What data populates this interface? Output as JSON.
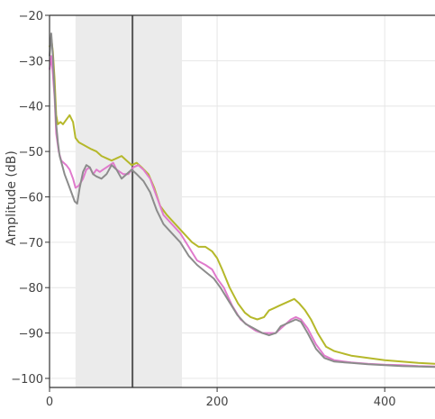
{
  "chart_data": {
    "type": "line",
    "title": "",
    "xlabel": "",
    "ylabel": "Amplitude (dB)",
    "xlim": [
      0,
      460
    ],
    "ylim": [
      -102,
      -20
    ],
    "x_ticks": [
      0,
      200,
      400
    ],
    "y_ticks": [
      -20,
      -30,
      -40,
      -50,
      -60,
      -70,
      -80,
      -90,
      -100
    ],
    "x_tick_labels": [
      "0",
      "200",
      "400"
    ],
    "y_tick_labels": [
      "−20",
      "−30",
      "−40",
      "−50",
      "−60",
      "−70",
      "−80",
      "−90",
      "−100"
    ],
    "grid": true,
    "shaded_region": {
      "x": [
        31,
        158
      ],
      "color": "#ebebeb"
    },
    "vertical_marker": {
      "x": 99,
      "color": "#555555"
    },
    "series": [
      {
        "color": "#b5b82a",
        "points": [
          [
            0,
            -27
          ],
          [
            2,
            -25
          ],
          [
            4,
            -28
          ],
          [
            6,
            -34
          ],
          [
            8,
            -42
          ],
          [
            10,
            -44
          ],
          [
            13,
            -43.5
          ],
          [
            16,
            -44
          ],
          [
            20,
            -43
          ],
          [
            24,
            -42
          ],
          [
            28,
            -43.5
          ],
          [
            31,
            -47
          ],
          [
            35,
            -48
          ],
          [
            40,
            -48.5
          ],
          [
            45,
            -49
          ],
          [
            50,
            -49.5
          ],
          [
            56,
            -50
          ],
          [
            62,
            -51
          ],
          [
            68,
            -51.5
          ],
          [
            74,
            -52
          ],
          [
            80,
            -51.5
          ],
          [
            86,
            -51
          ],
          [
            92,
            -52
          ],
          [
            98,
            -53
          ],
          [
            104,
            -52.5
          ],
          [
            110,
            -53.5
          ],
          [
            118,
            -55
          ],
          [
            125,
            -58
          ],
          [
            132,
            -62
          ],
          [
            140,
            -64
          ],
          [
            150,
            -66
          ],
          [
            160,
            -68
          ],
          [
            170,
            -70
          ],
          [
            178,
            -71
          ],
          [
            186,
            -71
          ],
          [
            194,
            -72
          ],
          [
            200,
            -73.5
          ],
          [
            206,
            -76
          ],
          [
            215,
            -80
          ],
          [
            225,
            -83.5
          ],
          [
            233,
            -85.5
          ],
          [
            240,
            -86.5
          ],
          [
            248,
            -87
          ],
          [
            256,
            -86.5
          ],
          [
            262,
            -85
          ],
          [
            268,
            -84.5
          ],
          [
            274,
            -84
          ],
          [
            280,
            -83.5
          ],
          [
            286,
            -83
          ],
          [
            292,
            -82.5
          ],
          [
            298,
            -83.5
          ],
          [
            305,
            -85
          ],
          [
            312,
            -87
          ],
          [
            320,
            -90
          ],
          [
            330,
            -93
          ],
          [
            340,
            -94
          ],
          [
            350,
            -94.5
          ],
          [
            360,
            -95
          ],
          [
            380,
            -95.5
          ],
          [
            400,
            -96
          ],
          [
            420,
            -96.3
          ],
          [
            440,
            -96.6
          ],
          [
            460,
            -96.8
          ]
        ]
      },
      {
        "color": "#e07acc",
        "points": [
          [
            0,
            -32
          ],
          [
            2,
            -29
          ],
          [
            4,
            -33
          ],
          [
            6,
            -38
          ],
          [
            8,
            -46
          ],
          [
            11,
            -50
          ],
          [
            14,
            -52
          ],
          [
            17,
            -52.5
          ],
          [
            20,
            -53
          ],
          [
            24,
            -54
          ],
          [
            28,
            -56
          ],
          [
            31,
            -58
          ],
          [
            35,
            -57.5
          ],
          [
            40,
            -56
          ],
          [
            44,
            -54
          ],
          [
            48,
            -53.5
          ],
          [
            52,
            -55
          ],
          [
            56,
            -54
          ],
          [
            60,
            -54.5
          ],
          [
            64,
            -54
          ],
          [
            68,
            -53.5
          ],
          [
            72,
            -53
          ],
          [
            76,
            -52.5
          ],
          [
            80,
            -54
          ],
          [
            84,
            -54.5
          ],
          [
            88,
            -55
          ],
          [
            94,
            -55
          ],
          [
            100,
            -53.5
          ],
          [
            106,
            -53
          ],
          [
            112,
            -54
          ],
          [
            120,
            -56
          ],
          [
            128,
            -60
          ],
          [
            136,
            -64
          ],
          [
            146,
            -66
          ],
          [
            156,
            -68
          ],
          [
            166,
            -71
          ],
          [
            176,
            -74
          ],
          [
            186,
            -75
          ],
          [
            194,
            -76
          ],
          [
            200,
            -78
          ],
          [
            208,
            -80
          ],
          [
            218,
            -84
          ],
          [
            228,
            -87
          ],
          [
            238,
            -88.5
          ],
          [
            246,
            -89.5
          ],
          [
            254,
            -90
          ],
          [
            262,
            -90
          ],
          [
            270,
            -90
          ],
          [
            276,
            -89
          ],
          [
            282,
            -88
          ],
          [
            288,
            -87
          ],
          [
            294,
            -86.5
          ],
          [
            300,
            -87
          ],
          [
            308,
            -89
          ],
          [
            318,
            -92.5
          ],
          [
            328,
            -95
          ],
          [
            340,
            -96
          ],
          [
            360,
            -96.5
          ],
          [
            380,
            -96.8
          ],
          [
            400,
            -97
          ],
          [
            420,
            -97.1
          ],
          [
            440,
            -97.3
          ],
          [
            460,
            -97.4
          ]
        ]
      },
      {
        "color": "#8c8c8c",
        "points": [
          [
            0,
            -29
          ],
          [
            2,
            -24
          ],
          [
            4,
            -29
          ],
          [
            6,
            -37
          ],
          [
            8,
            -44
          ],
          [
            10,
            -48
          ],
          [
            12,
            -51
          ],
          [
            15,
            -53
          ],
          [
            18,
            -55
          ],
          [
            22,
            -57
          ],
          [
            26,
            -59
          ],
          [
            30,
            -61
          ],
          [
            33,
            -61.5
          ],
          [
            36,
            -58
          ],
          [
            40,
            -54.5
          ],
          [
            44,
            -53
          ],
          [
            48,
            -53.5
          ],
          [
            52,
            -55
          ],
          [
            56,
            -55.5
          ],
          [
            62,
            -56
          ],
          [
            68,
            -55
          ],
          [
            74,
            -53
          ],
          [
            80,
            -54
          ],
          [
            86,
            -56
          ],
          [
            92,
            -55
          ],
          [
            98,
            -54
          ],
          [
            104,
            -55
          ],
          [
            112,
            -56.5
          ],
          [
            120,
            -59
          ],
          [
            128,
            -63
          ],
          [
            136,
            -66
          ],
          [
            146,
            -68
          ],
          [
            156,
            -70
          ],
          [
            166,
            -73
          ],
          [
            176,
            -75
          ],
          [
            186,
            -76.5
          ],
          [
            196,
            -78
          ],
          [
            204,
            -80
          ],
          [
            214,
            -83
          ],
          [
            224,
            -86
          ],
          [
            234,
            -88
          ],
          [
            244,
            -89
          ],
          [
            254,
            -90
          ],
          [
            262,
            -90.5
          ],
          [
            270,
            -90
          ],
          [
            276,
            -88.5
          ],
          [
            282,
            -88
          ],
          [
            288,
            -87.5
          ],
          [
            294,
            -87
          ],
          [
            300,
            -87.5
          ],
          [
            308,
            -90
          ],
          [
            318,
            -93.5
          ],
          [
            328,
            -95.5
          ],
          [
            340,
            -96.3
          ],
          [
            360,
            -96.6
          ],
          [
            380,
            -96.9
          ],
          [
            400,
            -97.1
          ],
          [
            420,
            -97.3
          ],
          [
            440,
            -97.4
          ],
          [
            460,
            -97.5
          ]
        ]
      }
    ]
  }
}
